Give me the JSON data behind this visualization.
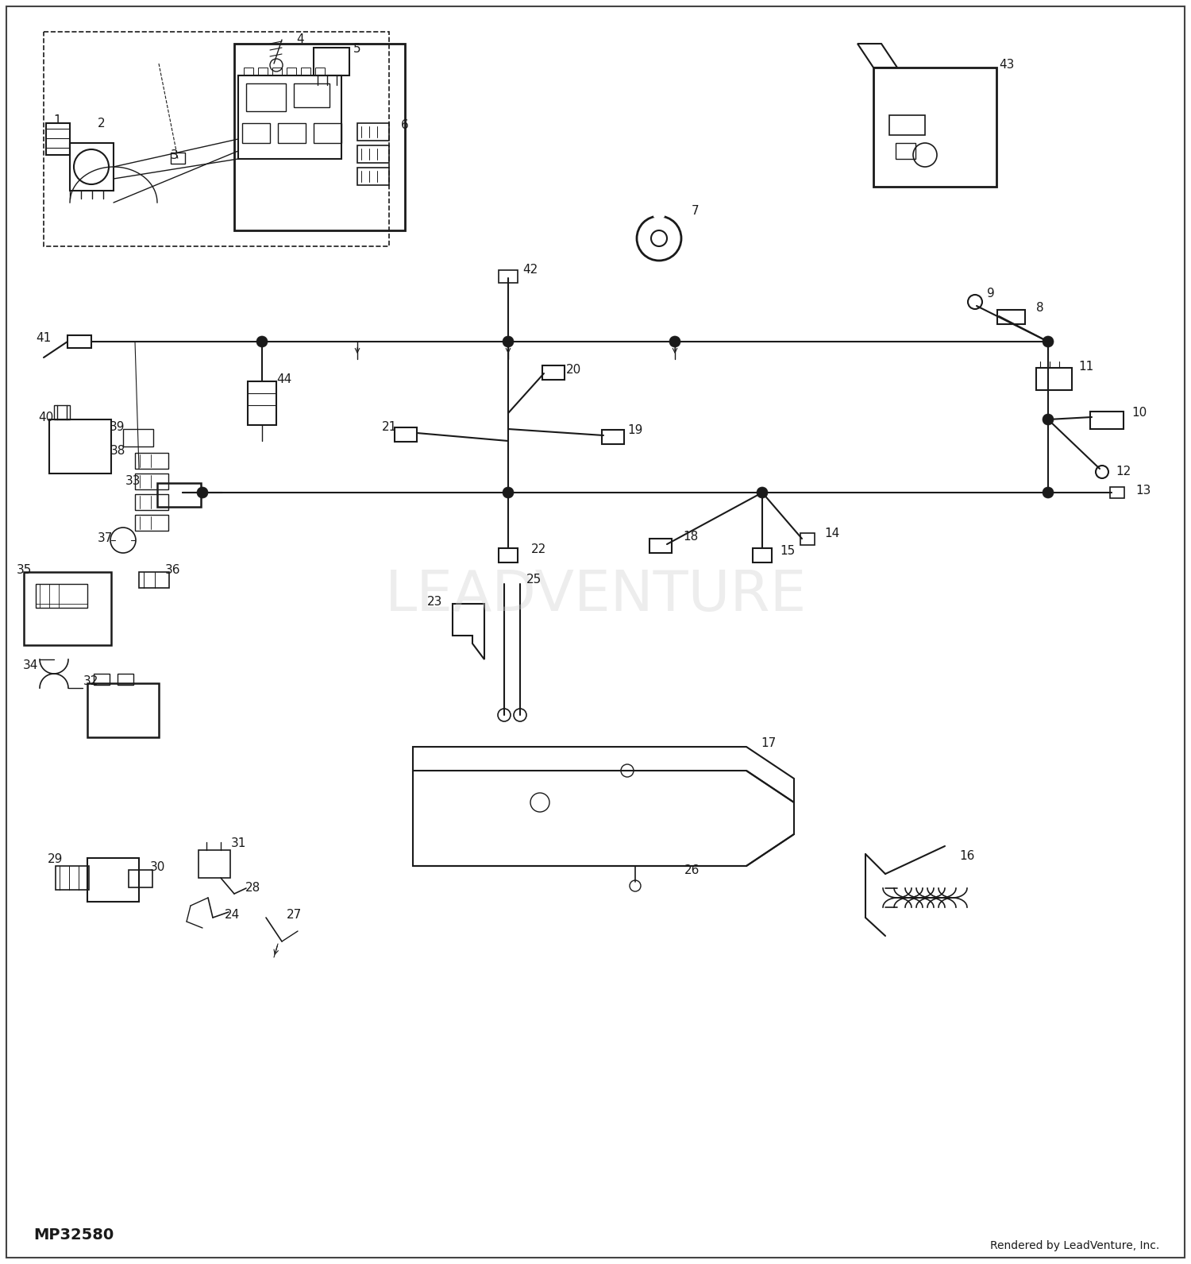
{
  "bg_color": "#ffffff",
  "line_color": "#1a1a1a",
  "text_color": "#1a1a1a",
  "watermark": "LEADVENTURE",
  "footnote_left": "MP32580",
  "footnote_right": "Rendered by LeadVenture, Inc.",
  "fig_width": 15.0,
  "fig_height": 15.91,
  "dpi": 100
}
